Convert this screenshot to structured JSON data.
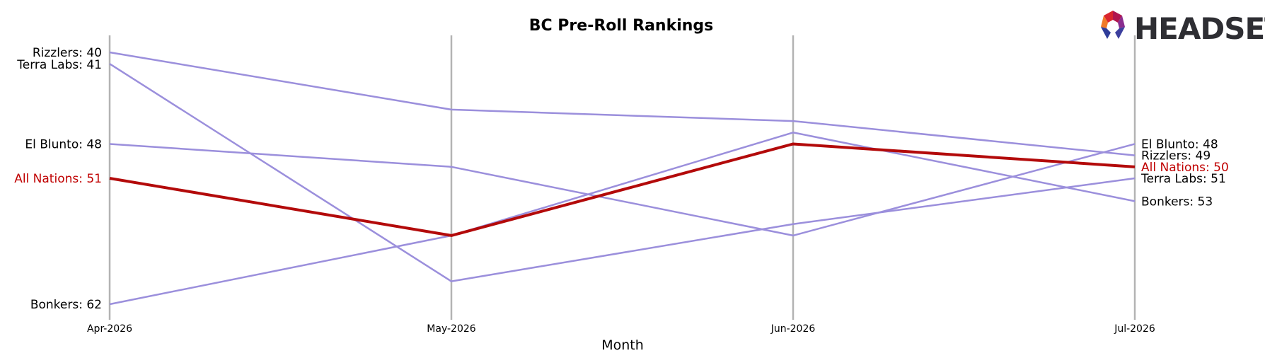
{
  "chart_data": {
    "type": "line",
    "title": "BC Pre-Roll Rankings",
    "xlabel": "Month",
    "ylabel": "",
    "x": [
      "Apr-2026",
      "May-2026",
      "Jun-2026",
      "Jul-2026"
    ],
    "ylim": [
      39,
      63
    ],
    "y_inverted": true,
    "grid": "vertical lines at each month",
    "legend": "none (labels at line ends)",
    "highlight_series": "All Nations",
    "colors": {
      "series": "#9b8fdc",
      "highlight": "#b30a0a",
      "grid": "#b3b3b3"
    },
    "series": [
      {
        "name": "Rizzlers",
        "values": [
          40,
          45,
          46,
          49
        ],
        "start_label": "Rizzlers: 40",
        "end_label": "Rizzlers: 49"
      },
      {
        "name": "Terra Labs",
        "values": [
          41,
          60,
          55,
          51
        ],
        "start_label": "Terra Labs: 41",
        "end_label": "Terra Labs: 51"
      },
      {
        "name": "El Blunto",
        "values": [
          48,
          50,
          56,
          48
        ],
        "start_label": "El Blunto: 48",
        "end_label": "El Blunto: 48"
      },
      {
        "name": "Bonkers",
        "values": [
          62,
          56,
          47,
          53
        ],
        "start_label": "Bonkers: 62",
        "end_label": "Bonkers: 53"
      },
      {
        "name": "All Nations",
        "values": [
          51,
          56,
          48,
          50
        ],
        "start_label": "All Nations: 51",
        "end_label": "All Nations: 50"
      }
    ]
  },
  "logo": {
    "text": "HEADSET",
    "icon": "headset-hexagon-logo-icon"
  }
}
